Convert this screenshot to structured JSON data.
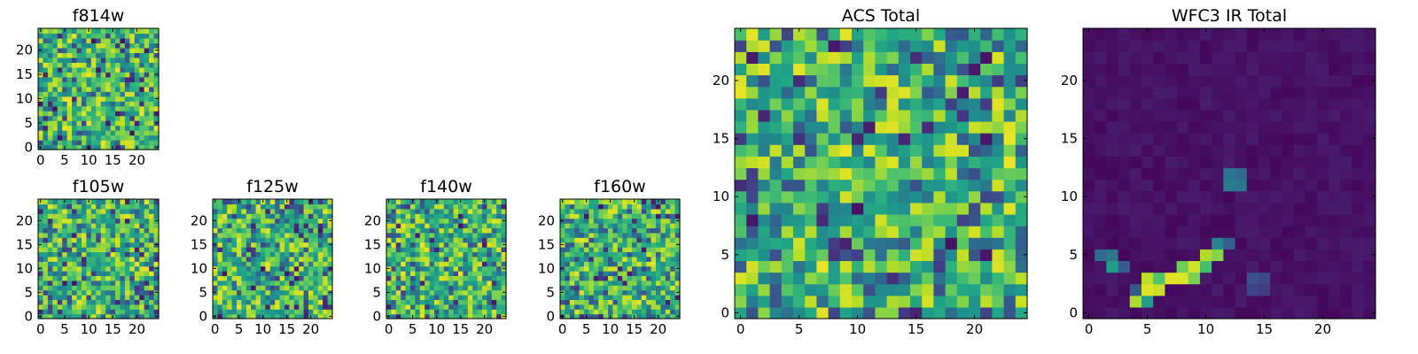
{
  "chart_data": [
    {
      "type": "heatmap",
      "title": "f814w",
      "colormap": "viridis",
      "grid": "25x25",
      "seed": 11,
      "pattern": "noise",
      "xticks": [
        "0",
        "5",
        "10",
        "15",
        "20"
      ],
      "yticks": [
        "0",
        "5",
        "10",
        "15",
        "20"
      ]
    },
    {
      "type": "heatmap",
      "title": "f105w",
      "colormap": "viridis",
      "grid": "25x25",
      "seed": 23,
      "pattern": "noise",
      "xticks": [
        "0",
        "5",
        "10",
        "15",
        "20"
      ],
      "yticks": [
        "0",
        "5",
        "10",
        "15",
        "20"
      ]
    },
    {
      "type": "heatmap",
      "title": "f125w",
      "colormap": "viridis",
      "grid": "25x25",
      "seed": 37,
      "pattern": "noise",
      "xticks": [
        "0",
        "5",
        "10",
        "15",
        "20"
      ],
      "yticks": [
        "0",
        "5",
        "10",
        "15",
        "20"
      ]
    },
    {
      "type": "heatmap",
      "title": "f140w",
      "colormap": "viridis",
      "grid": "25x25",
      "seed": 41,
      "pattern": "noise",
      "xticks": [
        "0",
        "5",
        "10",
        "15",
        "20"
      ],
      "yticks": [
        "0",
        "5",
        "10",
        "15",
        "20"
      ]
    },
    {
      "type": "heatmap",
      "title": "f160w",
      "colormap": "viridis",
      "grid": "25x25",
      "seed": 53,
      "pattern": "noise",
      "xticks": [
        "0",
        "5",
        "10",
        "15",
        "20"
      ],
      "yticks": [
        "0",
        "5",
        "10",
        "15",
        "20"
      ]
    },
    {
      "type": "heatmap",
      "title": "ACS Total",
      "colormap": "viridis",
      "grid": "25x25",
      "seed": 67,
      "pattern": "noise",
      "xticks": [
        "0",
        "5",
        "10",
        "15",
        "20"
      ],
      "yticks": [
        "0",
        "5",
        "10",
        "15",
        "20"
      ]
    },
    {
      "type": "heatmap",
      "title": "WFC3 IR Total",
      "colormap": "viridis",
      "grid": "25x25",
      "seed": 79,
      "pattern": "source",
      "bright_pixels": [
        {
          "x": 4,
          "y": 1,
          "value": 0.88
        },
        {
          "x": 5,
          "y": 1,
          "value": 0.55
        },
        {
          "x": 5,
          "y": 2,
          "value": 0.95
        },
        {
          "x": 6,
          "y": 2,
          "value": 0.92
        },
        {
          "x": 5,
          "y": 3,
          "value": 0.9
        },
        {
          "x": 6,
          "y": 3,
          "value": 0.72
        },
        {
          "x": 7,
          "y": 3,
          "value": 0.96
        },
        {
          "x": 8,
          "y": 3,
          "value": 0.95
        },
        {
          "x": 9,
          "y": 3,
          "value": 0.8
        },
        {
          "x": 8,
          "y": 4,
          "value": 0.78
        },
        {
          "x": 9,
          "y": 4,
          "value": 0.93
        },
        {
          "x": 10,
          "y": 4,
          "value": 0.7
        },
        {
          "x": 10,
          "y": 5,
          "value": 0.88
        },
        {
          "x": 11,
          "y": 5,
          "value": 0.82
        },
        {
          "x": 11,
          "y": 6,
          "value": 0.45
        },
        {
          "x": 12,
          "y": 6,
          "value": 0.3
        },
        {
          "x": 1,
          "y": 5,
          "value": 0.35
        },
        {
          "x": 2,
          "y": 5,
          "value": 0.4
        },
        {
          "x": 2,
          "y": 4,
          "value": 0.55
        },
        {
          "x": 3,
          "y": 4,
          "value": 0.3
        },
        {
          "x": 4,
          "y": 2,
          "value": 0.28
        },
        {
          "x": 12,
          "y": 11,
          "value": 0.42
        },
        {
          "x": 13,
          "y": 11,
          "value": 0.4
        },
        {
          "x": 12,
          "y": 12,
          "value": 0.38
        },
        {
          "x": 13,
          "y": 12,
          "value": 0.35
        },
        {
          "x": 14,
          "y": 3,
          "value": 0.25
        },
        {
          "x": 15,
          "y": 3,
          "value": 0.22
        },
        {
          "x": 14,
          "y": 2,
          "value": 0.2
        },
        {
          "x": 15,
          "y": 2,
          "value": 0.18
        }
      ],
      "xticks": [
        "0",
        "5",
        "10",
        "15",
        "20"
      ],
      "yticks": [
        "0",
        "5",
        "10",
        "15",
        "20"
      ]
    }
  ]
}
